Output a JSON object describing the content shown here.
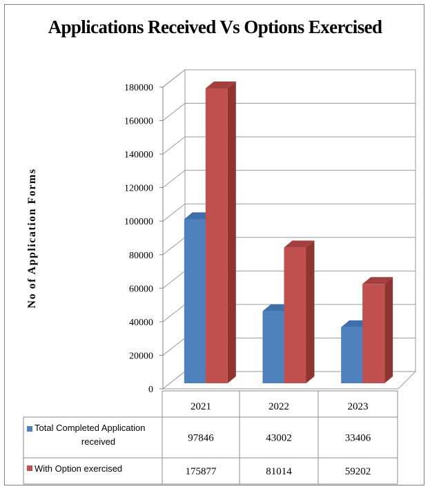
{
  "chart_data": {
    "type": "bar",
    "title": "Applications Received Vs Options Exercised",
    "ylabel": "No of Application Forms",
    "xlabel": "",
    "categories": [
      "2021",
      "2022",
      "2023"
    ],
    "series": [
      {
        "name_lines": [
          "Total Completed Application",
          "received"
        ],
        "values": [
          97846,
          43002,
          33406
        ],
        "color": "#4f81bd",
        "side_color": "#3a6090",
        "top_color": "#3f6ea8"
      },
      {
        "name_lines": [
          "With Option exercised"
        ],
        "values": [
          175877,
          81014,
          59202
        ],
        "color": "#c0504d",
        "side_color": "#8e3532",
        "top_color": "#a33f3c"
      }
    ],
    "ylim": [
      0,
      180000
    ],
    "yticks": [
      "0",
      "20000",
      "40000",
      "60000",
      "80000",
      "100000",
      "120000",
      "140000",
      "160000",
      "180000"
    ],
    "grid": true,
    "legend": "data-table-left",
    "data_table": true
  }
}
